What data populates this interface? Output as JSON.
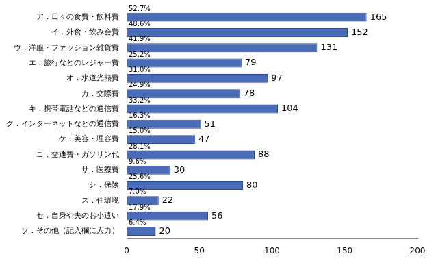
{
  "chart_data": {
    "type": "bar",
    "orientation": "horizontal",
    "categories": [
      "ア．日々の食費・飲料費",
      "イ．外食・飲み会費",
      "ウ．洋服・ファッション雑貨費",
      "エ．旅行などのレジャー費",
      "オ．水道光熱費",
      "カ．交際費",
      "キ．携帯電話などの通信費",
      "ク．インターネットなどの通信費",
      "ケ．美容・理容費",
      "コ．交通費・ガソリン代",
      "サ．医療費",
      "シ．保険",
      "ス．住環境",
      "セ．自身や夫のお小遣い",
      "ソ．その他（記入欄に入力）"
    ],
    "values": [
      165,
      152,
      131,
      79,
      97,
      78,
      104,
      51,
      47,
      88,
      30,
      80,
      22,
      56,
      20
    ],
    "share_labels": [
      "52.7%",
      "48.6%",
      "41.9%",
      "25.2%",
      "31.0%",
      "24.9%",
      "33.2%",
      "16.3%",
      "15.0%",
      "28.1%",
      "9.6%",
      "25.6%",
      "7.0%",
      "17.9%",
      "6.4%"
    ],
    "color": "#4a6bb5",
    "xlim": [
      0,
      200
    ],
    "xticks": [
      0,
      50,
      100,
      150,
      200
    ],
    "grid": false,
    "data_labels": true
  }
}
